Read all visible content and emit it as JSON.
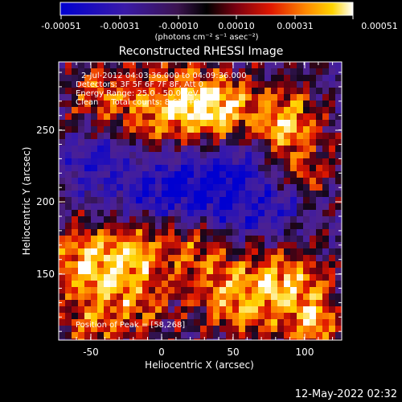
{
  "colorbar": {
    "tick_labels": [
      "-0.00051",
      "-0.00031",
      "-0.00010",
      "0.00010",
      "0.00031",
      "0.00051"
    ],
    "units_label": "(photons cm⁻² s⁻¹ asec⁻²)"
  },
  "plot": {
    "title": "Reconstructed RHESSI Image",
    "info_lines": [
      "2-Jul-2012 04:03:36.000 to 04:09:36.000",
      "Detectors: 3F 5F 6F 7F 8F, Att 0",
      "Energy Range: 25.0 - 50.0 keV",
      "Clean     Total counts: 8.61E+03"
    ],
    "peak_text": "Position of Peak = [58,268]",
    "x_axis": {
      "label": "Heliocentric X (arcsec)",
      "ticks": [
        "-50",
        "0",
        "50",
        "100"
      ]
    },
    "y_axis": {
      "label": "Heliocentric Y (arcsec)",
      "ticks": [
        "250",
        "200",
        "150"
      ]
    }
  },
  "footer": {
    "timestamp": "12-May-2022 02:32"
  },
  "colors": {
    "background": "#000000",
    "text": "#ffffff"
  }
}
